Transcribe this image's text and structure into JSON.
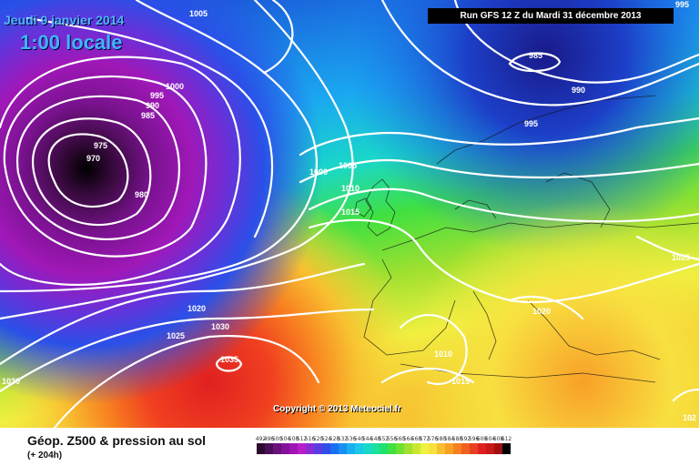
{
  "header": {
    "date_title": "Jeudi 9 janvier 2014",
    "time_title": "1:00 locale",
    "run_banner": "Run GFS 12 Z du Mardi 31 décembre 2013"
  },
  "copyright": "Copyright © 2013 Meteociel.fr",
  "legend": {
    "title": "Géop. Z500 & pression au sol",
    "subtitle": "(+ 204h)",
    "values": [
      "492",
      "496",
      "500",
      "504",
      "508",
      "512",
      "516",
      "520",
      "524",
      "528",
      "532",
      "536",
      "540",
      "544",
      "548",
      "552",
      "556",
      "560",
      "564",
      "568",
      "572",
      "576",
      "580",
      "584",
      "588",
      "592",
      "596",
      "600",
      "604",
      "608",
      "612"
    ],
    "colors": [
      "#2a0a2e",
      "#4b0f58",
      "#6a1278",
      "#85139a",
      "#a016b4",
      "#b81fc8",
      "#8a2bd6",
      "#5a3de0",
      "#2f4fe8",
      "#1c6ff0",
      "#1a8ff2",
      "#1aaff0",
      "#1ac8e8",
      "#1ad8c8",
      "#1ae0a0",
      "#20e070",
      "#40e040",
      "#70e030",
      "#a0e030",
      "#c8e830",
      "#f0f040",
      "#f8e040",
      "#f8c030",
      "#f8a028",
      "#f88020",
      "#f06020",
      "#e84020",
      "#e02020",
      "#c81818",
      "#a01010",
      "#000000"
    ]
  },
  "isobars": [
    {
      "label": "1005"
    },
    {
      "label": "1000"
    },
    {
      "label": "995"
    },
    {
      "label": "990"
    },
    {
      "label": "985"
    },
    {
      "label": "975"
    },
    {
      "label": "970"
    },
    {
      "label": "980"
    },
    {
      "label": "995"
    },
    {
      "label": "985"
    },
    {
      "label": "990"
    },
    {
      "label": "995"
    },
    {
      "label": "1000"
    },
    {
      "label": "1005"
    },
    {
      "label": "1010"
    },
    {
      "label": "1015"
    },
    {
      "label": "1020"
    },
    {
      "label": "1030"
    },
    {
      "label": "1025"
    },
    {
      "label": "1035"
    },
    {
      "label": "1030"
    },
    {
      "label": "1010"
    },
    {
      "label": "1015"
    },
    {
      "label": "1020"
    },
    {
      "label": "1025"
    },
    {
      "label": "102"
    }
  ]
}
